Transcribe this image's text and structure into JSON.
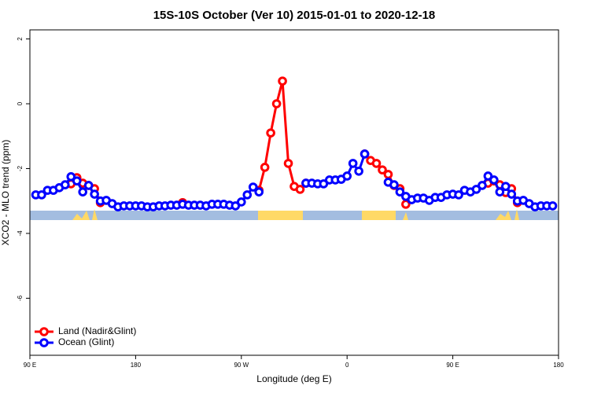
{
  "chart_data": {
    "type": "line",
    "title": "15S-10S October (Ver 10)   2015-01-01 to 2020-12-18",
    "x_label": "Longitude (deg E)",
    "y_label": "XCO2 - MLO trend (ppm)",
    "x": [
      95,
      100,
      105,
      110,
      115,
      120,
      125,
      130,
      135,
      140,
      145,
      150,
      155,
      160,
      165,
      170,
      175,
      180,
      185,
      190,
      195,
      200,
      205,
      210,
      215,
      220,
      225,
      230,
      235,
      240,
      245,
      250,
      255,
      260,
      265,
      270,
      275,
      280,
      285,
      290,
      295,
      300,
      305,
      310,
      315,
      320,
      325,
      330,
      335,
      340,
      345,
      350,
      355,
      360,
      365,
      370,
      375,
      380,
      385,
      390,
      395,
      400,
      405,
      410,
      415,
      420,
      425,
      430,
      435,
      440,
      445,
      450,
      455,
      460,
      465,
      470,
      475,
      480,
      485,
      490,
      495,
      500,
      505,
      510,
      515,
      520,
      525,
      530,
      535
    ],
    "xlim": [
      90,
      540
    ],
    "xticks": [
      {
        "value": 90,
        "label": "90 E"
      },
      180,
      {
        "value": 270,
        "label": "90 W"
      },
      {
        "value": 360,
        "label": "0"
      },
      {
        "value": 450,
        "label": "90 E"
      },
      {
        "value": 540,
        "label": "180"
      }
    ],
    "ylim": [
      -7.76,
      2.28
    ],
    "yticks": [
      2,
      0,
      -2,
      -4,
      -6
    ],
    "legend": "bottom-left",
    "series": [
      {
        "name": "Land (Nadir&Glint)",
        "color": "#ff0000",
        "values": [
          null,
          null,
          null,
          null,
          null,
          null,
          -2.47,
          -2.28,
          -2.45,
          -2.52,
          -2.62,
          -3.05,
          null,
          null,
          null,
          null,
          null,
          null,
          null,
          null,
          null,
          null,
          null,
          null,
          null,
          -3.05,
          null,
          null,
          null,
          null,
          null,
          null,
          null,
          null,
          null,
          null,
          null,
          null,
          -2.67,
          -1.96,
          -0.9,
          0.0,
          0.7,
          -1.84,
          -2.55,
          -2.64,
          -2.45,
          null,
          null,
          null,
          null,
          null,
          null,
          null,
          null,
          null,
          -1.55,
          -1.75,
          -1.84,
          -2.04,
          -2.18,
          -2.52,
          -2.62,
          -3.1,
          null,
          null,
          null,
          null,
          null,
          null,
          null,
          null,
          null,
          null,
          null,
          null,
          null,
          -2.45,
          -2.38,
          -2.5,
          -2.74,
          -2.62,
          -3.05,
          null,
          null,
          null,
          null,
          null,
          null
        ]
      },
      {
        "name": "Ocean (Glint)",
        "color": "#0000ff",
        "values": [
          -2.81,
          -2.81,
          -2.67,
          -2.67,
          -2.59,
          -2.5,
          -2.25,
          -2.38,
          -2.72,
          -2.52,
          -2.79,
          -3.0,
          -2.98,
          -3.08,
          -3.18,
          -3.15,
          -3.15,
          -3.15,
          -3.15,
          -3.18,
          -3.18,
          -3.15,
          -3.15,
          -3.13,
          -3.13,
          -3.1,
          -3.13,
          -3.13,
          -3.13,
          -3.15,
          -3.1,
          -3.1,
          -3.1,
          -3.13,
          -3.15,
          -3.03,
          -2.81,
          -2.57,
          -2.72,
          null,
          null,
          null,
          null,
          null,
          null,
          null,
          -2.45,
          -2.45,
          -2.47,
          -2.47,
          -2.35,
          -2.35,
          -2.33,
          -2.23,
          -1.84,
          -2.08,
          -1.55,
          null,
          null,
          null,
          -2.42,
          -2.5,
          -2.72,
          -2.86,
          -2.96,
          -2.91,
          -2.91,
          -2.98,
          -2.89,
          -2.89,
          -2.81,
          -2.79,
          -2.81,
          -2.67,
          -2.72,
          -2.64,
          -2.52,
          -2.23,
          -2.35,
          -2.72,
          -2.55,
          -2.79,
          -3.0,
          -2.98,
          -3.08,
          -3.18,
          -3.15,
          -3.15,
          -3.15
        ]
      }
    ]
  }
}
